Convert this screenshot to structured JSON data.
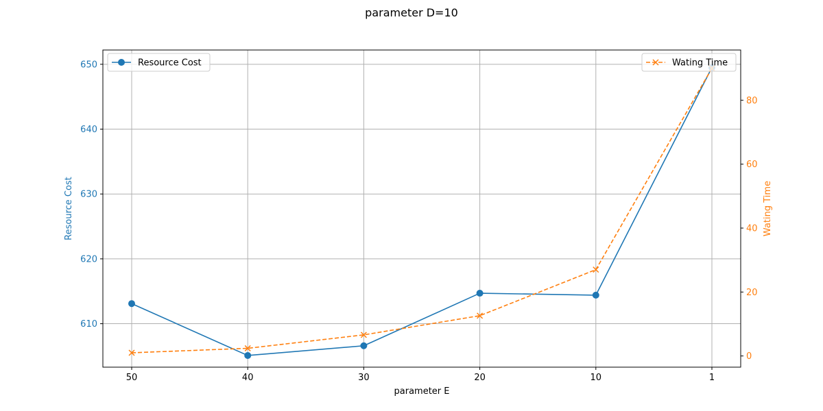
{
  "chart_data": {
    "type": "line",
    "title": "parameter D=10",
    "xlabel": "parameter E",
    "categories": [
      "50",
      "40",
      "30",
      "20",
      "10",
      "1"
    ],
    "y_left": {
      "label": "Resource Cost",
      "color": "#1f77b4",
      "ylim": [
        603.3,
        652.2
      ],
      "ticks": [
        610,
        620,
        630,
        640,
        650
      ]
    },
    "y_right": {
      "label": "Wating Time",
      "color": "#ff7f0e",
      "ylim": [
        -3.5,
        95.7
      ],
      "ticks": [
        0,
        20,
        40,
        60,
        80
      ]
    },
    "series": [
      {
        "name": "Resource Cost",
        "axis": "left",
        "color": "#1f77b4",
        "style": "solid",
        "marker": "circle",
        "values": [
          613.1,
          605.1,
          606.6,
          614.7,
          614.4,
          649.5
        ]
      },
      {
        "name": "Wating Time",
        "axis": "right",
        "color": "#ff7f0e",
        "style": "dashed",
        "marker": "x",
        "values": [
          1.0,
          2.4,
          6.6,
          12.6,
          27.0,
          90.0
        ]
      }
    ],
    "grid": true,
    "legend_left": "top-left",
    "legend_right": "top-right"
  }
}
